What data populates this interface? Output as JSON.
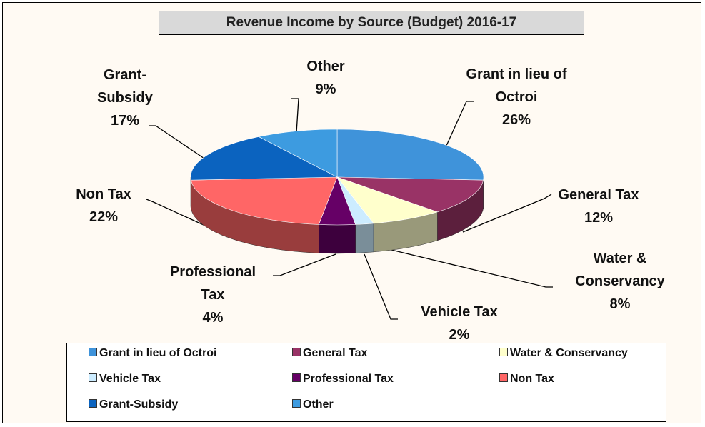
{
  "chart_data": {
    "type": "pie3d",
    "title": "Revenue Income by Source (Budget) 2016-17",
    "categories": [
      "Grant in lieu of Octroi",
      "General Tax",
      "Water & Conservancy",
      "Vehicle Tax",
      "Professional Tax",
      "Non Tax",
      "Grant-Subsidy",
      "Other"
    ],
    "values": [
      26,
      12,
      8,
      2,
      4,
      22,
      17,
      9
    ],
    "value_labels": [
      "26%",
      "12%",
      "8%",
      "2%",
      "4%",
      "22%",
      "17%",
      "9%"
    ],
    "colors": [
      "#3f93da",
      "#993366",
      "#ffffcc",
      "#ccecff",
      "#660066",
      "#ff6666",
      "#0b63bf",
      "#3d9be0"
    ],
    "legend": "bottom"
  }
}
